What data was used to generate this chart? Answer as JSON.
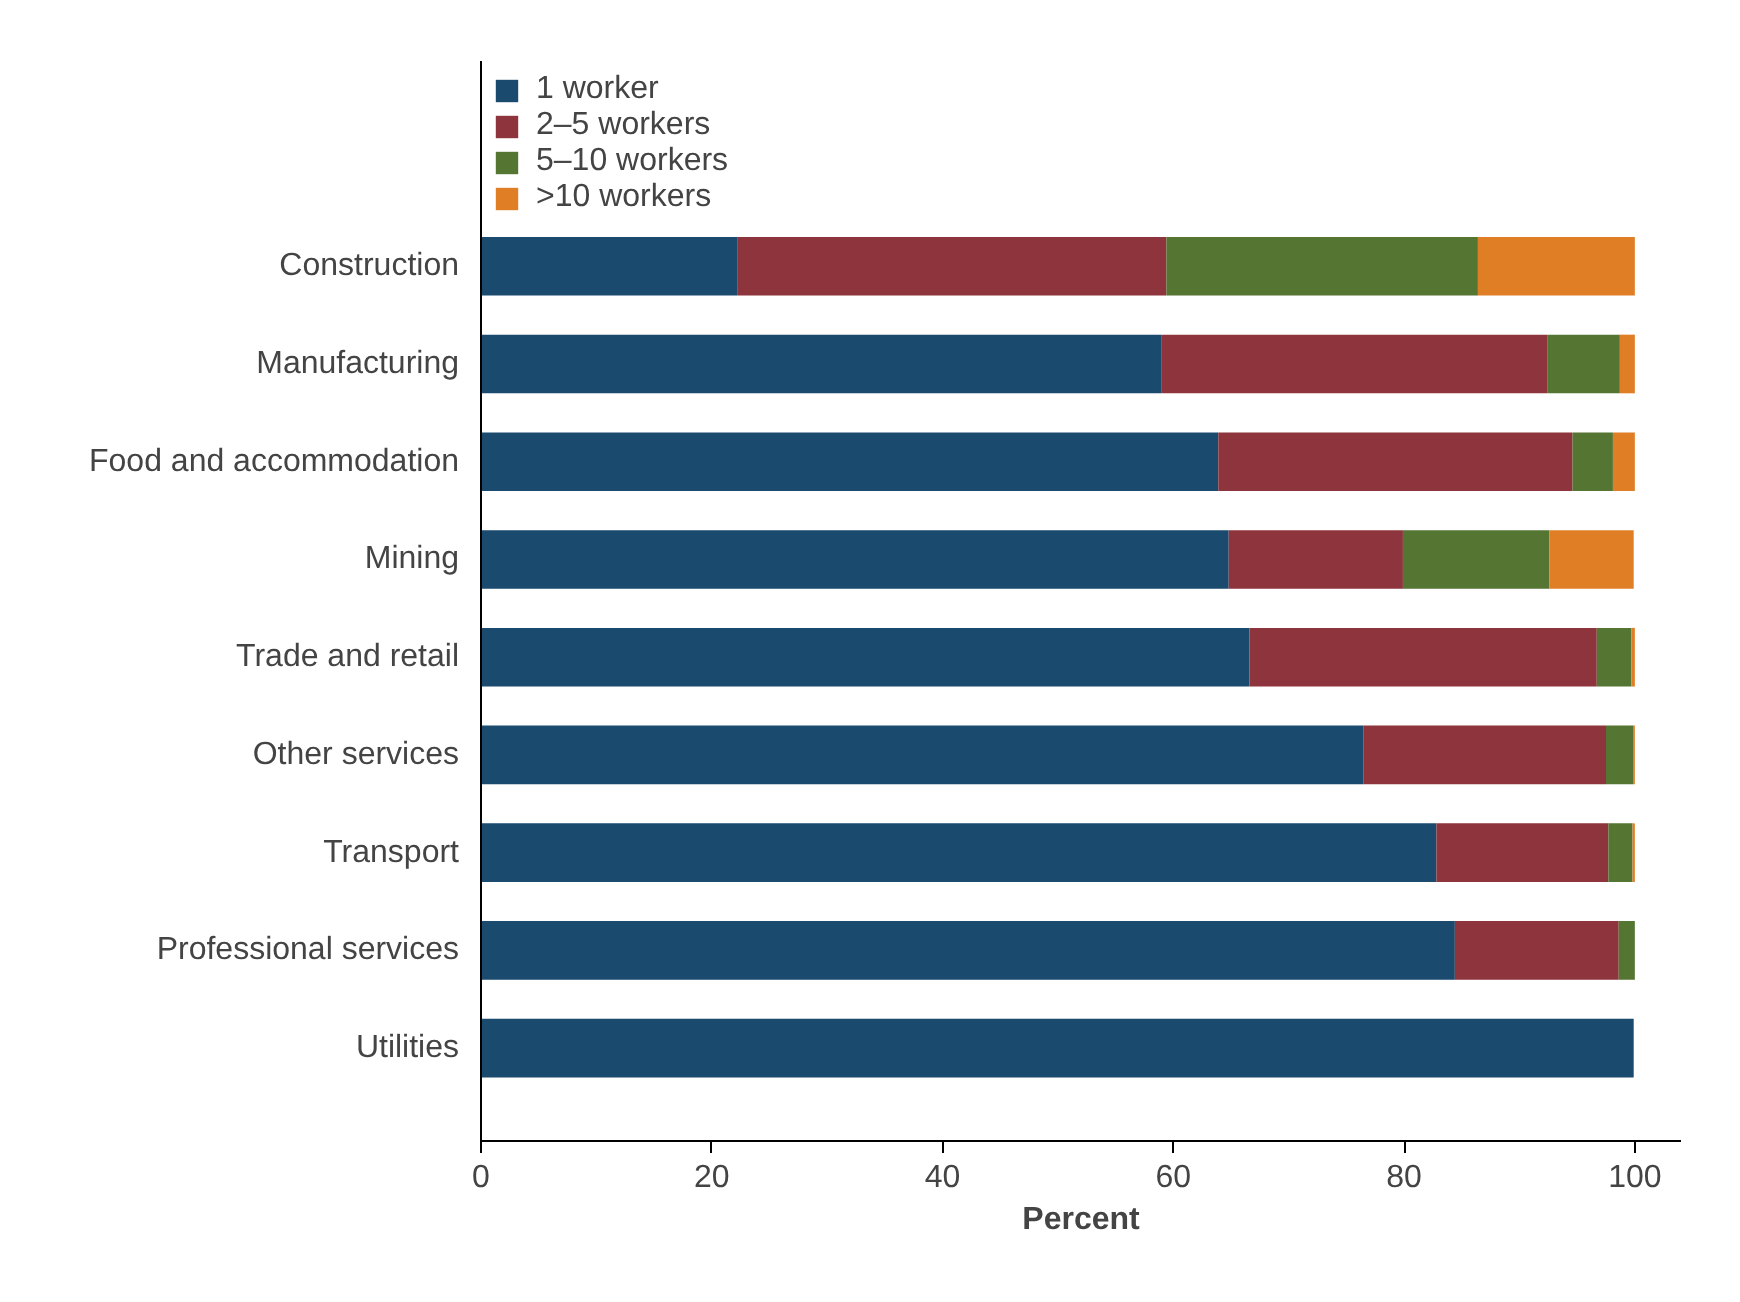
{
  "chart_data": {
    "type": "bar",
    "orientation": "horizontal",
    "stacked": true,
    "xlabel": "Percent",
    "categories": [
      "Construction",
      "Manufacturing",
      "Food and accommodation",
      "Mining",
      "Trade and retail",
      "Other services",
      "Transport",
      "Professional services",
      "Utilities"
    ],
    "series": [
      {
        "name": "1 worker",
        "color": "#1a4a6e",
        "values": [
          22.2,
          59.0,
          63.9,
          64.8,
          66.6,
          76.5,
          82.8,
          84.4,
          99.9
        ]
      },
      {
        "name": "2–5 workers",
        "color": "#8e343c",
        "values": [
          37.2,
          33.4,
          30.7,
          15.1,
          30.1,
          21.0,
          14.9,
          14.2,
          0
        ]
      },
      {
        "name": "5–10 workers",
        "color": "#557533",
        "values": [
          27.0,
          6.3,
          3.5,
          12.7,
          3.0,
          2.4,
          2.1,
          1.4,
          0
        ]
      },
      {
        "name": ">10 workers",
        "color": "#e07e26",
        "values": [
          13.6,
          1.3,
          1.9,
          7.3,
          0.3,
          0.1,
          0.2,
          0,
          0
        ]
      }
    ],
    "xlim": [
      0,
      104
    ],
    "xticks": [
      0,
      20,
      40,
      60,
      80,
      100
    ],
    "grid": false,
    "legend": "top left"
  }
}
